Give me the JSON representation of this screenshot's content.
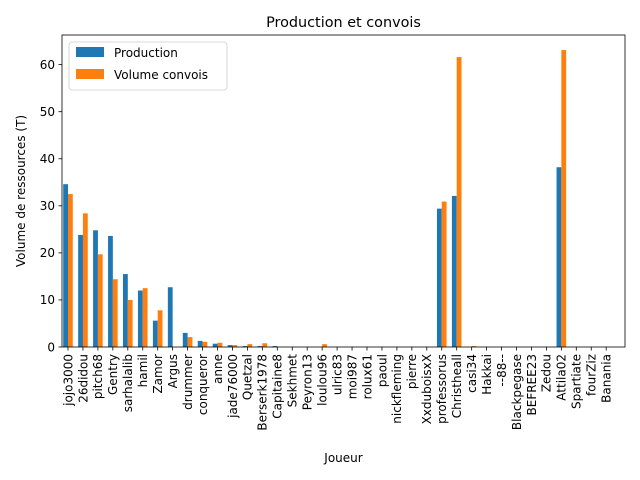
{
  "chart_data": {
    "type": "bar",
    "title": "Production et convois",
    "xlabel": "Joueur",
    "ylabel": "Volume de ressources (T)",
    "ylim": [
      0,
      66.3
    ],
    "yticks": [
      0,
      10,
      20,
      30,
      40,
      50,
      60
    ],
    "grid": false,
    "legend_position": "top-left",
    "categories": [
      "jojo3000",
      "26didou",
      "pitch68",
      "Gentry",
      "sarhalalib",
      "hamil",
      "Zamor",
      "Argus",
      "drummer",
      "conqueror",
      "anne",
      "jade76000",
      "Quetzal",
      "Berserk1978",
      "Capitaine8",
      "Sekhmet",
      "Peyron13",
      "loulou96",
      "ulric83",
      "moi987",
      "rolux61",
      "paoul",
      "nickfleming",
      "pierre",
      "XxduboisxX",
      "professorus",
      "Christheall",
      "casi34",
      "Hakkai",
      "--88--",
      "Blackpegase",
      "BEFREE23",
      "Zedou",
      "Attila02",
      "Spartiate",
      "fourZiz",
      "Banania"
    ],
    "series": [
      {
        "name": "Production",
        "color": "#1f77b4",
        "values": [
          34.6,
          23.8,
          24.8,
          23.6,
          15.5,
          12.0,
          5.6,
          12.7,
          3.0,
          1.3,
          0.7,
          0.4,
          0.2,
          0.2,
          0.2,
          0,
          0,
          0,
          0,
          0,
          0,
          0,
          0,
          0,
          0,
          29.4,
          32.1,
          0,
          0,
          0,
          0,
          0,
          0,
          38.2,
          0,
          0,
          0
        ]
      },
      {
        "name": "Volume convois",
        "color": "#ff7f0e",
        "values": [
          32.5,
          28.4,
          19.7,
          14.4,
          10.0,
          12.5,
          7.8,
          0,
          2.1,
          1.1,
          0.9,
          0.4,
          0.6,
          0.8,
          0,
          0,
          0,
          0.6,
          0,
          0,
          0,
          0,
          0,
          0,
          0,
          30.9,
          61.6,
          0.2,
          0,
          0,
          0,
          0,
          0,
          63.1,
          0,
          0,
          0
        ]
      }
    ]
  }
}
